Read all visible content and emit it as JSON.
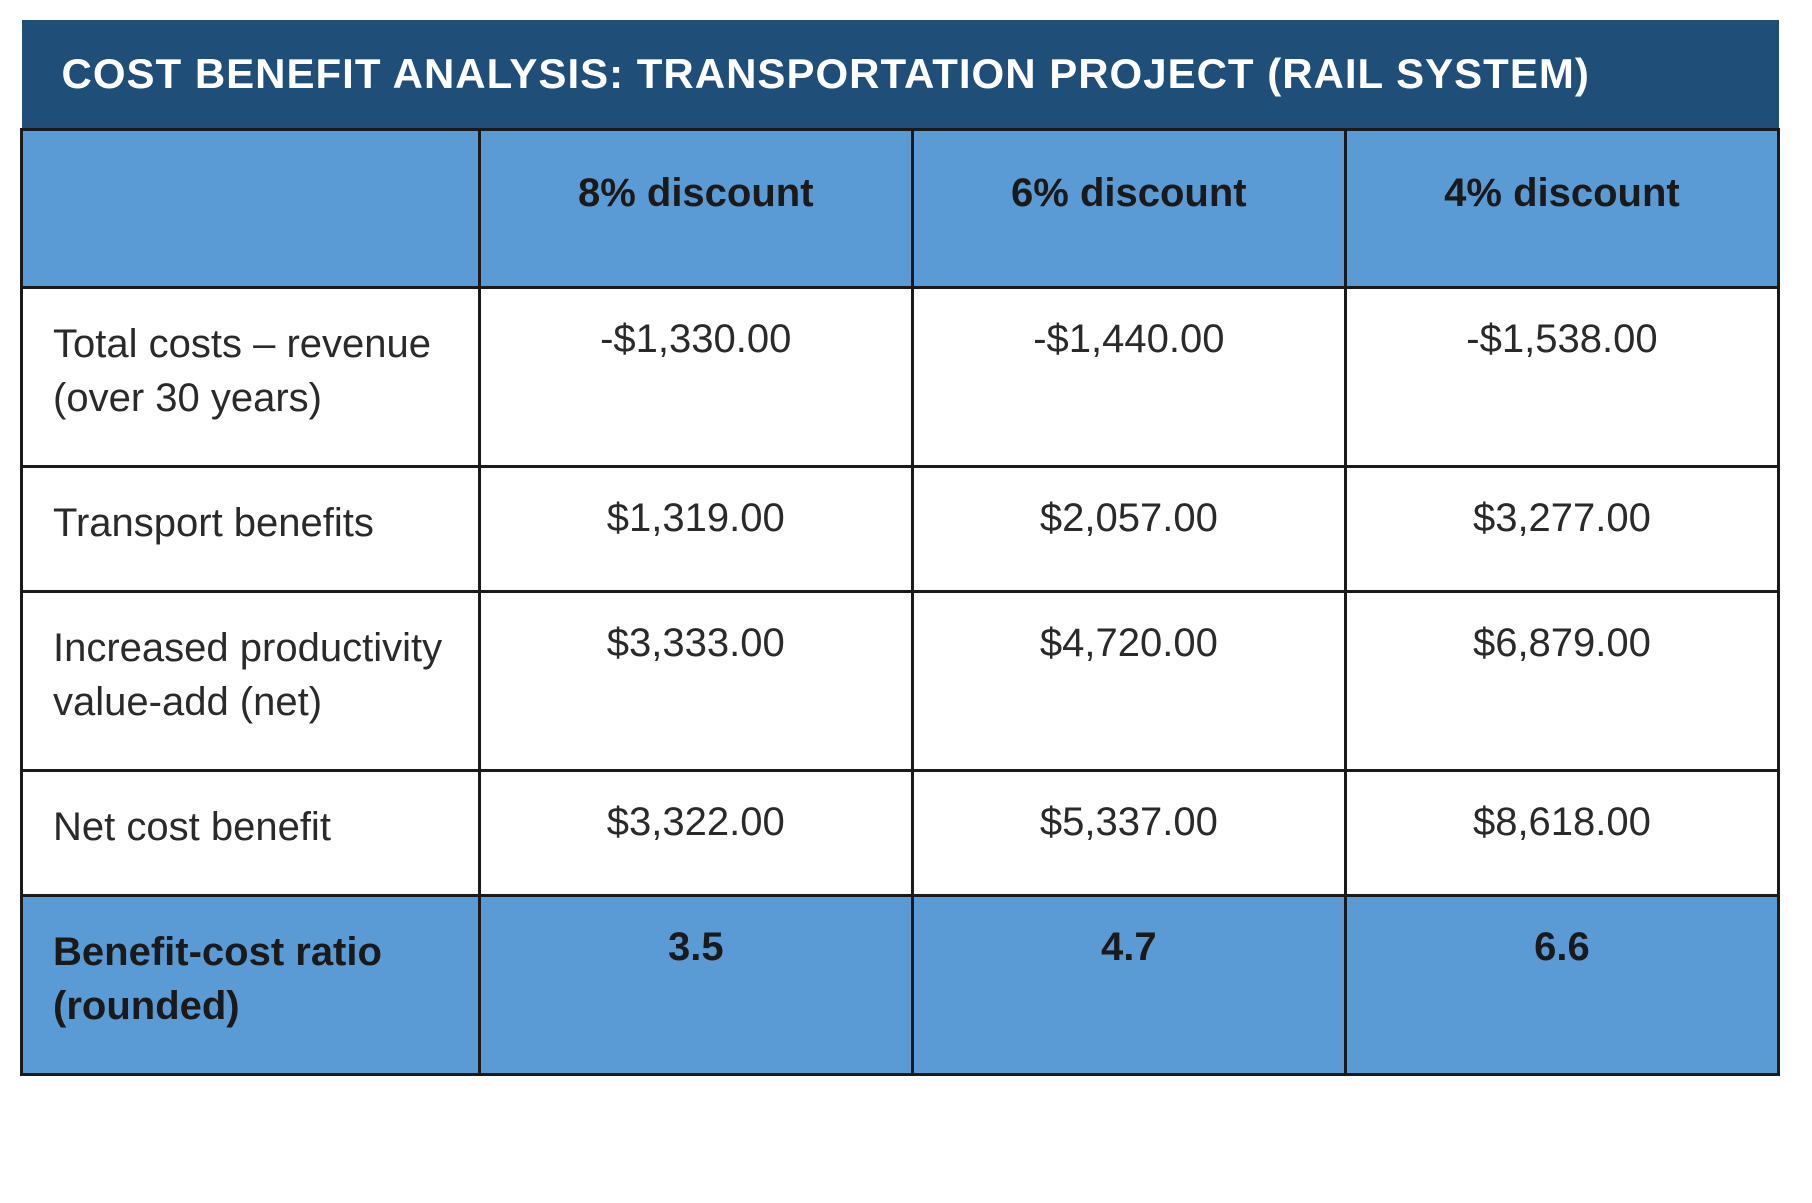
{
  "table": {
    "type": "table",
    "title": "COST BENEFIT ANALYSIS: TRANSPORTATION PROJECT (RAIL SYSTEM)",
    "title_bg": "#1f4e79",
    "title_color": "#ffffff",
    "title_fontsize": 42,
    "header_bg": "#5b9bd5",
    "ratio_bg": "#5b9bd5",
    "border_color": "#1a1a1a",
    "text_color": "#2a2a2a",
    "cell_fontsize": 40,
    "columns": [
      "",
      "8% discount",
      "6% discount",
      "4% discount"
    ],
    "column_widths_pct": [
      26,
      24.6,
      24.6,
      24.6
    ],
    "rows": [
      {
        "label": "Total costs – revenue (over 30 years)",
        "vals": [
          "-$1,330.00",
          "-$1,440.00",
          "-$1,538.00"
        ]
      },
      {
        "label": "Transport benefits",
        "vals": [
          "$1,319.00",
          "$2,057.00",
          "$3,277.00"
        ]
      },
      {
        "label": "Increased productivity value-add (net)",
        "vals": [
          "$3,333.00",
          "$4,720.00",
          "$6,879.00"
        ]
      },
      {
        "label": "Net cost benefit",
        "vals": [
          "$3,322.00",
          "$5,337.00",
          "$8,618.00"
        ]
      }
    ],
    "ratio_row": {
      "label": "Benefit-cost ratio (rounded)",
      "vals": [
        "3.5",
        "4.7",
        "6.6"
      ]
    }
  }
}
